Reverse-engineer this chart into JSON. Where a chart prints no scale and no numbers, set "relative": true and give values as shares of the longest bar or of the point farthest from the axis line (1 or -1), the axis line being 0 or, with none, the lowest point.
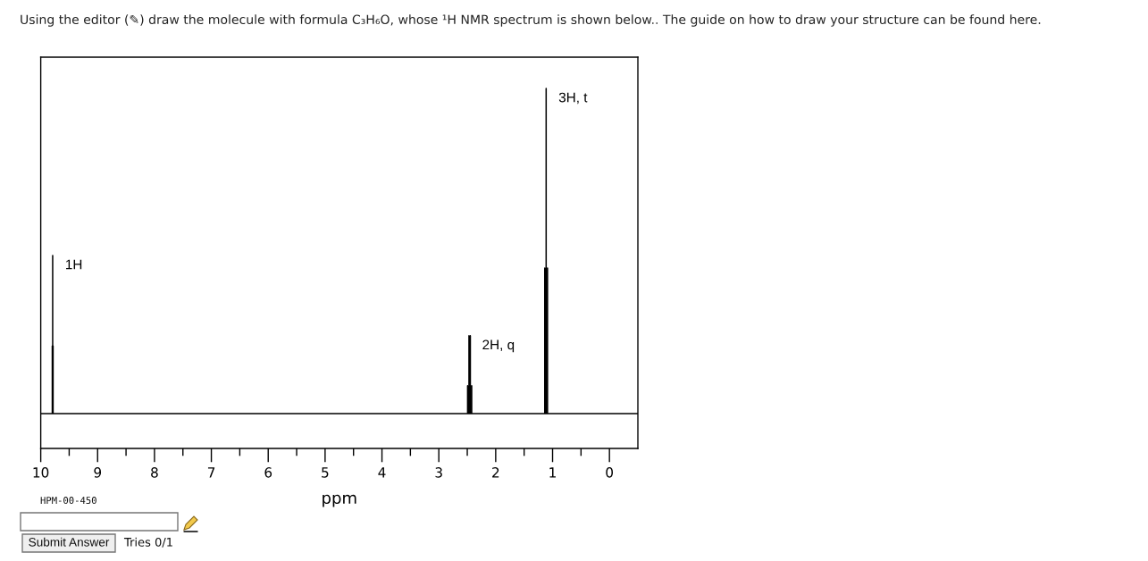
{
  "chart_data": {
    "type": "line",
    "relative": true,
    "title": "Using the editor (✎) draw the molecule with formula C₃H₆O, whose ¹H NMR spectrum is shown below.. The guide on how to draw your structure can be found here.",
    "xlabel": "ppm",
    "xlim": [
      10,
      -0.5
    ],
    "xticks": [
      10,
      {
        "value": 9.5,
        "label": null
      },
      9,
      {
        "value": 8.5,
        "label": null
      },
      8,
      {
        "value": 7.5,
        "label": null
      },
      7,
      {
        "value": 6.5,
        "label": null
      },
      6,
      {
        "value": 5.5,
        "label": null
      },
      5,
      {
        "value": 4.5,
        "label": null
      },
      4,
      {
        "value": 3.5,
        "label": null
      },
      3,
      {
        "value": 2.5,
        "label": null
      },
      2,
      {
        "value": 1.5,
        "label": null
      },
      1,
      {
        "value": 0.5,
        "label": null
      },
      0
    ],
    "series": [
      {
        "color": "#000000",
        "x": [
          10,
          9.797,
          9.797,
          9.797,
          9.79,
          9.79,
          9.79,
          9.783,
          9.783,
          9.783,
          2.494,
          2.494,
          2.494,
          2.47,
          2.47,
          2.47,
          2.446,
          2.446,
          2.446,
          2.422,
          2.422,
          2.422,
          1.137,
          1.137,
          1.137,
          1.113,
          1.113,
          1.113,
          1.089,
          1.089,
          1.089,
          -0.5
        ],
        "values": [
          0.097,
          0.097,
          0.285,
          0.097,
          0.097,
          0.536,
          0.097,
          0.097,
          0.285,
          0.097,
          0.097,
          0.174,
          0.097,
          0.097,
          0.313,
          0.097,
          0.097,
          0.313,
          0.097,
          0.097,
          0.174,
          0.097,
          0.097,
          0.501,
          0.097,
          0.097,
          1,
          0.097,
          0.097,
          0.501,
          0.097,
          0.097
        ]
      }
    ],
    "annotations": [
      {
        "text": "1H",
        "x": 9.79,
        "y": 0.536
      },
      {
        "text": "2H, q",
        "x": 2.458,
        "y": 0.313
      },
      {
        "text": "3H, t",
        "x": 1.113,
        "y": 1
      },
      "HPM-00-450",
      "Submit Answer",
      "Tries 0/1"
    ]
  }
}
